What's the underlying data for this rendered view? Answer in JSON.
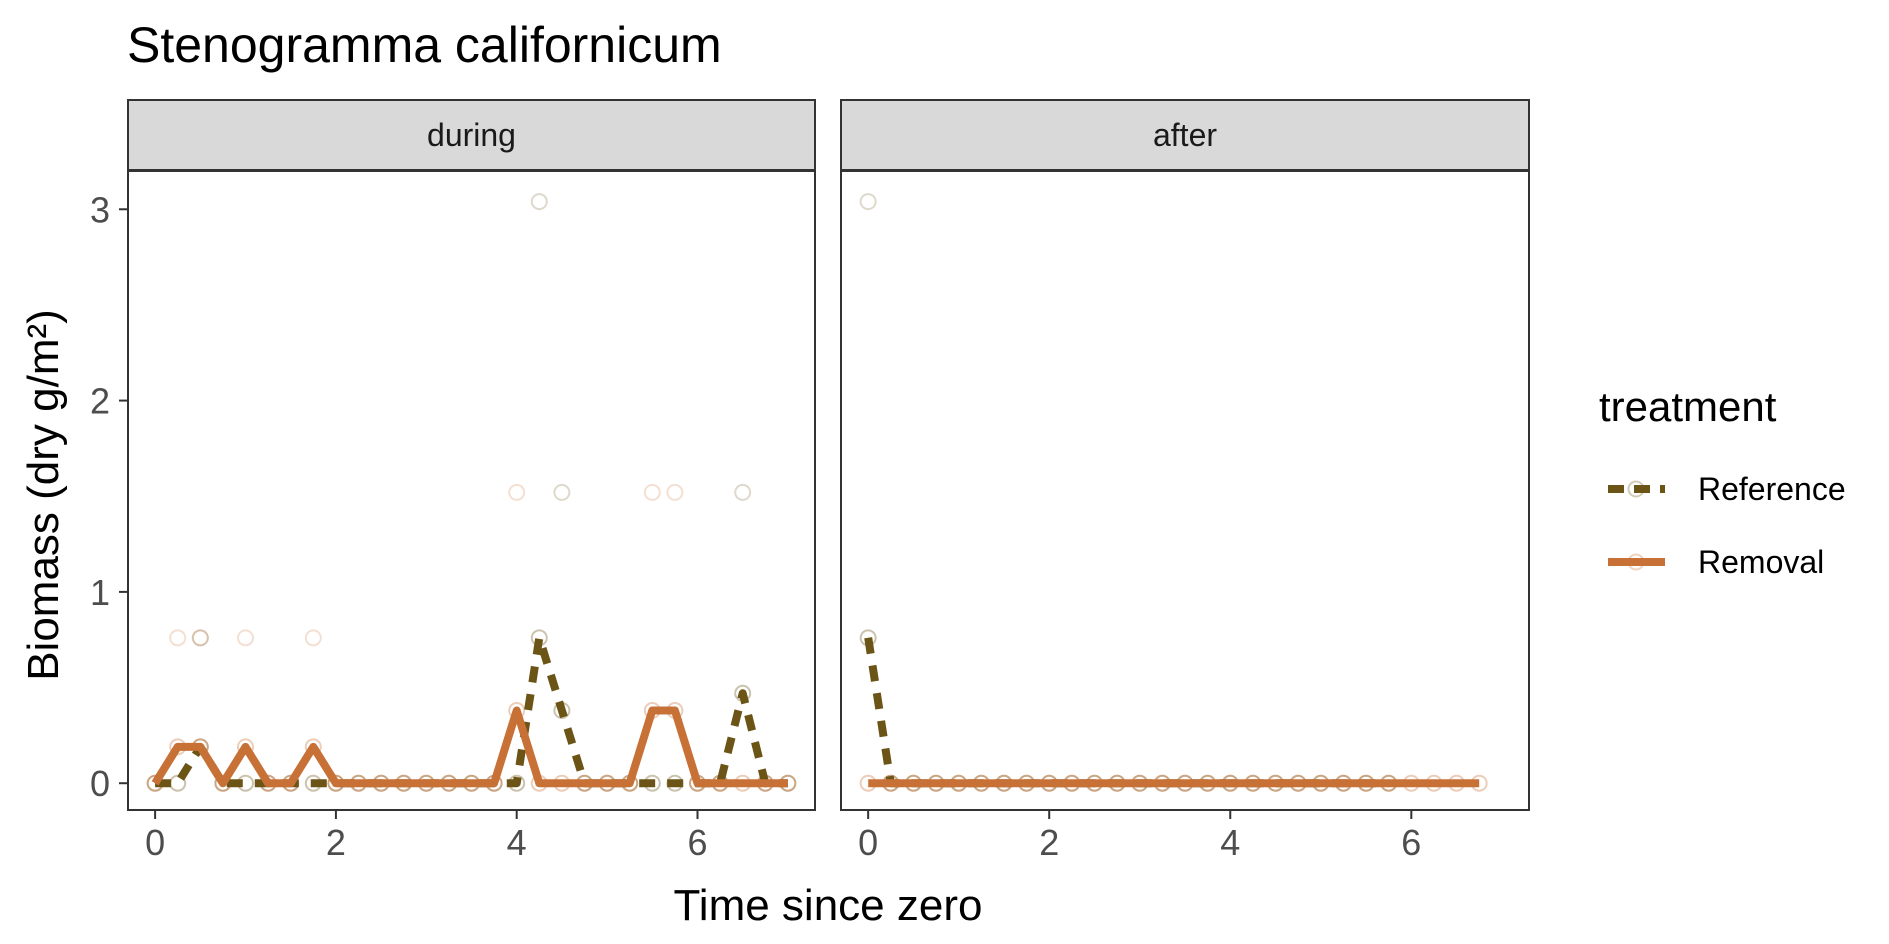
{
  "chart_data": {
    "type": "line",
    "title": "Stenogramma californicum",
    "xlabel": "Time since zero",
    "ylabel": "Biomass (dry g/m²)",
    "xlim": [
      -0.3,
      7.3
    ],
    "ylim": [
      -0.14,
      3.2
    ],
    "x_ticks": [
      0,
      2,
      4,
      6
    ],
    "x_tick_labels": [
      "0",
      "2",
      "4",
      "6"
    ],
    "y_ticks": [
      0,
      1,
      2,
      3
    ],
    "y_tick_labels": [
      "0",
      "1",
      "2",
      "3"
    ],
    "grid": false,
    "legend": {
      "title": "treatment",
      "position": "right",
      "entries": [
        {
          "label": "Reference",
          "color": "#6b5416",
          "linestyle": "dashed"
        },
        {
          "label": "Removal",
          "color": "#c87137",
          "linestyle": "solid"
        }
      ]
    },
    "colors": {
      "Reference": "#6b5416",
      "Removal": "#c87137",
      "strip_fill": "#d9d9d9",
      "panel_border": "#333333"
    },
    "panels": [
      {
        "label": "during",
        "series": [
          {
            "name": "Reference",
            "x": [
              0,
              0.25,
              0.5,
              0.75,
              1,
              1.25,
              1.5,
              1.75,
              2,
              2.25,
              2.5,
              2.75,
              3,
              3.25,
              3.5,
              3.75,
              4,
              4.25,
              4.5,
              4.75,
              5,
              5.25,
              5.5,
              5.75,
              6,
              6.25,
              6.5,
              6.75,
              7
            ],
            "y": [
              0,
              0,
              0.19,
              0,
              0,
              0,
              0,
              0,
              0,
              0,
              0,
              0,
              0,
              0,
              0,
              0,
              0,
              0.76,
              0.38,
              0,
              0,
              0,
              0,
              0,
              0,
              0,
              0.47,
              0,
              0
            ]
          },
          {
            "name": "Removal",
            "x": [
              0,
              0.25,
              0.5,
              0.75,
              1,
              1.25,
              1.5,
              1.75,
              2,
              2.25,
              2.5,
              2.75,
              3,
              3.25,
              3.5,
              3.75,
              4,
              4.25,
              4.5,
              4.75,
              5,
              5.25,
              5.5,
              5.75,
              6,
              6.25,
              6.5,
              6.75,
              7
            ],
            "y": [
              0,
              0.19,
              0.19,
              0,
              0.19,
              0,
              0,
              0.19,
              0,
              0,
              0,
              0,
              0,
              0,
              0,
              0,
              0.38,
              0,
              0,
              0,
              0,
              0,
              0.38,
              0.38,
              0,
              0,
              0,
              0,
              0
            ]
          }
        ],
        "points": [
          {
            "x": 0.25,
            "y": 0.76,
            "treatment": "Removal"
          },
          {
            "x": 0.5,
            "y": 0.76,
            "treatment": "Reference"
          },
          {
            "x": 0.5,
            "y": 0.76,
            "treatment": "Removal"
          },
          {
            "x": 1,
            "y": 0.76,
            "treatment": "Removal"
          },
          {
            "x": 1.75,
            "y": 0.76,
            "treatment": "Removal"
          },
          {
            "x": 4,
            "y": 1.52,
            "treatment": "Removal"
          },
          {
            "x": 4.25,
            "y": 3.04,
            "treatment": "Reference"
          },
          {
            "x": 4.5,
            "y": 1.52,
            "treatment": "Reference"
          },
          {
            "x": 5.5,
            "y": 1.52,
            "treatment": "Removal"
          },
          {
            "x": 5.75,
            "y": 1.52,
            "treatment": "Removal"
          },
          {
            "x": 6.5,
            "y": 1.52,
            "treatment": "Reference"
          }
        ]
      },
      {
        "label": "after",
        "series": [
          {
            "name": "Reference",
            "x": [
              0,
              0.25,
              0.5,
              0.75,
              1,
              1.25,
              1.5,
              1.75,
              2,
              2.25,
              2.5,
              2.75,
              3,
              3.25,
              3.5,
              3.75,
              4,
              4.25,
              4.5,
              4.75,
              5,
              5.25,
              5.5,
              5.75
            ],
            "y": [
              0.76,
              0,
              0,
              0,
              0,
              0,
              0,
              0,
              0,
              0,
              0,
              0,
              0,
              0,
              0,
              0,
              0,
              0,
              0,
              0,
              0,
              0,
              0,
              0
            ]
          },
          {
            "name": "Removal",
            "x": [
              0,
              0.25,
              0.5,
              0.75,
              1,
              1.25,
              1.5,
              1.75,
              2,
              2.25,
              2.5,
              2.75,
              3,
              3.25,
              3.5,
              3.75,
              4,
              4.25,
              4.5,
              4.75,
              5,
              5.25,
              5.5,
              5.75,
              6,
              6.25,
              6.5,
              6.75
            ],
            "y": [
              0,
              0,
              0,
              0,
              0,
              0,
              0,
              0,
              0,
              0,
              0,
              0,
              0,
              0,
              0,
              0,
              0,
              0,
              0,
              0,
              0,
              0,
              0,
              0,
              0,
              0,
              0,
              0
            ]
          }
        ],
        "points": [
          {
            "x": 0,
            "y": 3.04,
            "treatment": "Reference"
          }
        ]
      }
    ]
  }
}
